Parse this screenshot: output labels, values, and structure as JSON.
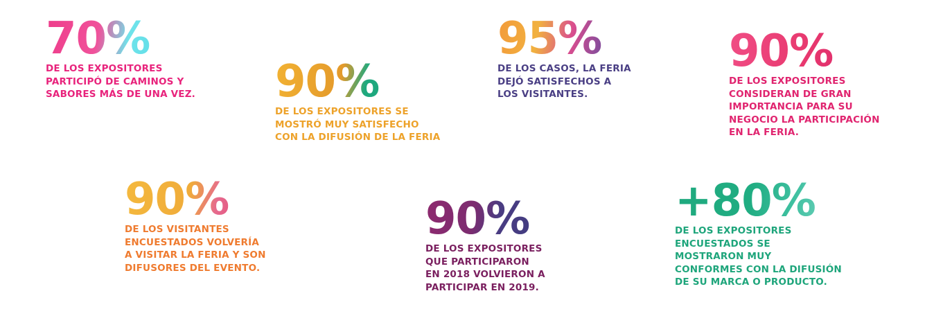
{
  "stats": [
    {
      "value": "70%",
      "lines": [
        "DE LOS EXPOSITORES",
        "PARTICIPÓ DE CAMINOS Y",
        "SABORES MÁS DE UNA VEZ."
      ]
    },
    {
      "value": "90%",
      "lines": [
        "DE LOS EXPOSITORES SE",
        "MOSTRÓ MUY SATISFECHO",
        "CON LA DIFUSIÓN DE LA FERIA"
      ]
    },
    {
      "value": "95%",
      "lines": [
        "DE LOS CASOS, LA FERIA",
        "DEJÓ SATISFECHOS A",
        "LOS VISITANTES."
      ]
    },
    {
      "value": "90%",
      "lines": [
        "DE LOS EXPOSITORES",
        "CONSIDERAN DE GRAN",
        "IMPORTANCIA PARA SU",
        "NEGOCIO LA PARTICIPACIÓN",
        "EN LA FERIA."
      ]
    },
    {
      "value": "90%",
      "lines": [
        "DE LOS VISITANTES",
        "ENCUESTADOS VOLVERÍA",
        "A VISITAR LA FERIA Y SON",
        "DIFUSORES DEL EVENTO."
      ]
    },
    {
      "value": "90%",
      "lines": [
        "DE LOS EXPOSITORES",
        "QUE PARTICIPARON",
        "EN 2018 VOLVIERON A",
        "PARTICIPAR EN 2019."
      ]
    },
    {
      "value": "+80%",
      "lines": [
        "DE LOS EXPOSITORES",
        "ENCUESTADOS SE",
        "MOSTRARON MUY",
        "CONFORMES CON LA DIFUSIÓN",
        "DE SU MARCA O PRODUCTO."
      ]
    }
  ],
  "colors": {
    "pink": "#e8237c",
    "orange": "#eda22a",
    "indigo": "#4a3f84",
    "crimson": "#e0246f",
    "amber": "#ef7b2f",
    "plum": "#7a1f5f",
    "teal": "#1ea57b"
  }
}
